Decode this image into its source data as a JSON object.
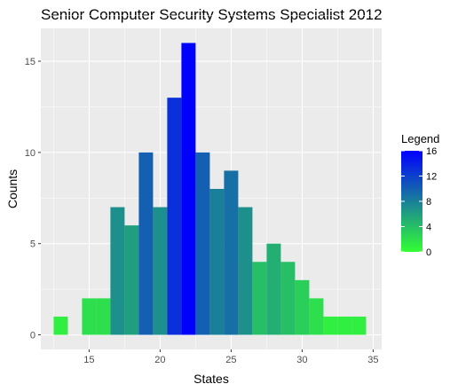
{
  "chart_data": {
    "type": "bar",
    "title": "Senior Computer Security Systems Specialist 2012",
    "xlabel": "States",
    "ylabel": "Counts",
    "binwidth": 1,
    "x": [
      13,
      14,
      15,
      16,
      17,
      18,
      19,
      20,
      21,
      22,
      23,
      24,
      25,
      26,
      27,
      28,
      29,
      30,
      31,
      32,
      33,
      34
    ],
    "values": [
      1,
      0,
      2,
      2,
      7,
      6,
      10,
      7,
      13,
      16,
      10,
      8,
      9,
      7,
      4,
      5,
      4,
      3,
      2,
      1,
      1,
      1
    ],
    "x_bins_extra": [
      [
        35,
        0
      ]
    ],
    "xlim": [
      11.6,
      35.6
    ],
    "ylim": [
      -0.8,
      16.8
    ],
    "x_ticks": [
      "15",
      "20",
      "25",
      "30",
      "35"
    ],
    "x_tick_values": [
      15,
      20,
      25,
      30,
      35
    ],
    "y_ticks": [
      "0",
      "5",
      "10",
      "15"
    ],
    "y_tick_values": [
      0,
      5,
      10,
      15
    ],
    "grid": true,
    "legend": {
      "title": "Legend",
      "placement": "right",
      "labels": [
        "16",
        "12",
        "8",
        "4",
        "0"
      ],
      "label_values": [
        16,
        12,
        8,
        4,
        0
      ],
      "low_color": "#33ff33",
      "high_color": "#0000ff",
      "range": [
        0,
        16
      ]
    },
    "panel_color": "#ebebeb",
    "grid_color": "#ffffff"
  }
}
